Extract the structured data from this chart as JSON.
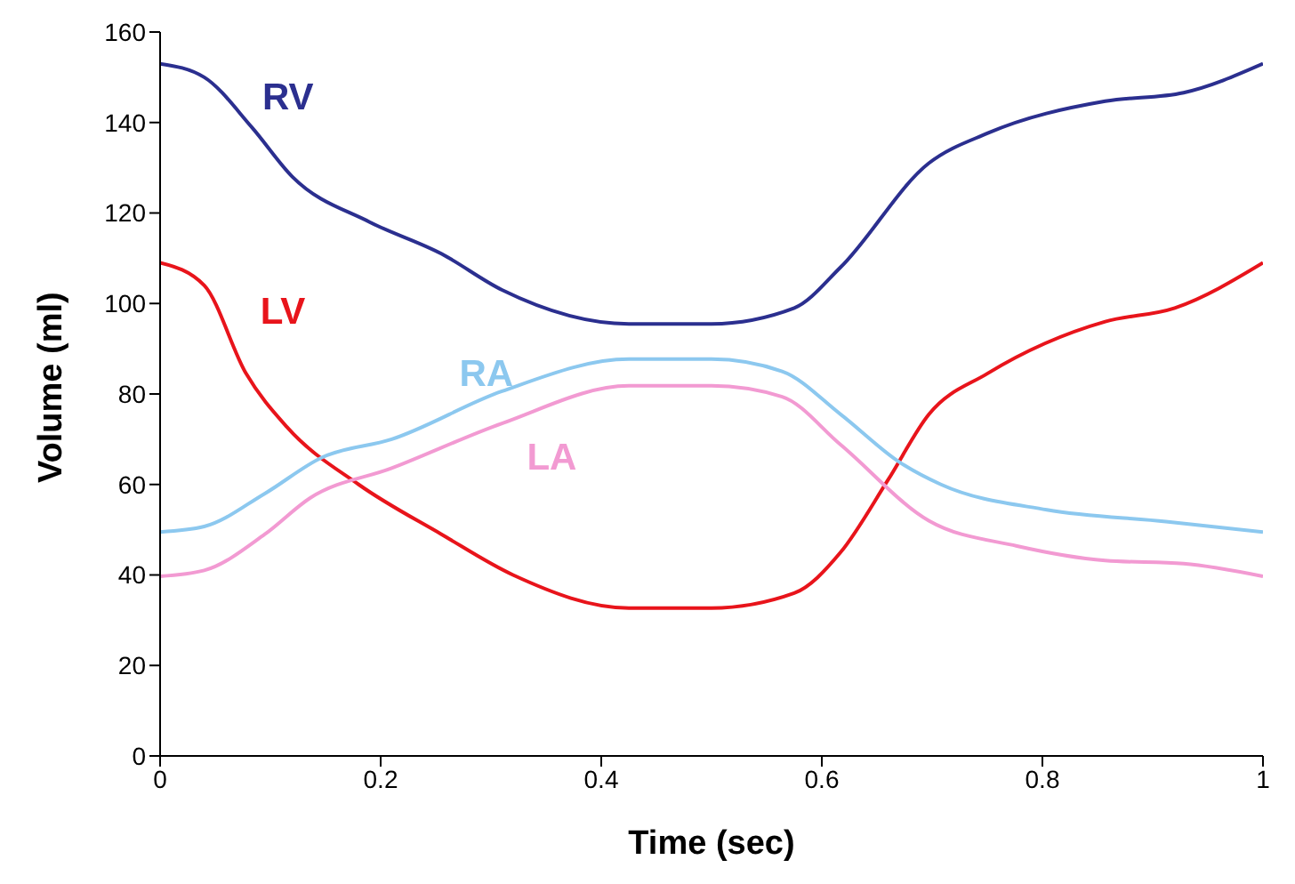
{
  "chart_data": {
    "type": "line",
    "xlabel": "Time (sec)",
    "ylabel": "Volume (ml)",
    "xlim": [
      0,
      1
    ],
    "xticks": [
      0,
      0.2,
      0.4,
      0.6,
      0.8,
      1
    ],
    "ylim": [
      0,
      160
    ],
    "yticks": [
      0,
      20,
      40,
      60,
      80,
      100,
      120,
      140,
      160
    ],
    "grid": false,
    "legend": false,
    "marker": "none",
    "line_style": "solid",
    "series": [
      {
        "name": "RV",
        "color": "#2b2f8f",
        "x": [
          0,
          0.04,
          0.083,
          0.12,
          0.19,
          0.255,
          0.31,
          0.425,
          0.5,
          0.575,
          0.617,
          0.697,
          0.75,
          0.857,
          0.928,
          1
        ],
        "values": [
          153,
          150,
          139,
          128,
          118,
          111,
          103,
          95.5,
          95.5,
          99,
          108,
          131,
          137.6,
          144.7,
          146.6,
          153
        ]
      },
      {
        "name": "LV",
        "color": "#e8141b",
        "x": [
          0,
          0.04,
          0.078,
          0.115,
          0.18,
          0.255,
          0.32,
          0.425,
          0.5,
          0.575,
          0.617,
          0.66,
          0.697,
          0.75,
          0.857,
          0.92,
          1
        ],
        "values": [
          109,
          104,
          84.5,
          72.7,
          60,
          49,
          40,
          32.7,
          32.7,
          36,
          45,
          61,
          75.5,
          84.5,
          96,
          99,
          109
        ]
      },
      {
        "name": "RA",
        "color": "#8cc8ef",
        "x": [
          0,
          0.04,
          0.095,
          0.147,
          0.21,
          0.31,
          0.425,
          0.5,
          0.564,
          0.617,
          0.67,
          0.708,
          0.804,
          0.912,
          1
        ],
        "values": [
          49.5,
          50.7,
          58,
          66,
          70,
          80.6,
          87.7,
          87.7,
          85,
          75.5,
          65,
          60,
          54.4,
          51.8,
          49.5
        ]
      },
      {
        "name": "LA",
        "color": "#f29ad2",
        "x": [
          0,
          0.04,
          0.095,
          0.136,
          0.21,
          0.31,
          0.425,
          0.5,
          0.564,
          0.617,
          0.697,
          0.777,
          0.857,
          0.928,
          1
        ],
        "values": [
          39.7,
          41,
          49,
          57,
          63.6,
          73.5,
          81.8,
          81.8,
          79.4,
          68.8,
          52,
          46.4,
          43.2,
          42.5,
          39.7
        ]
      }
    ]
  }
}
